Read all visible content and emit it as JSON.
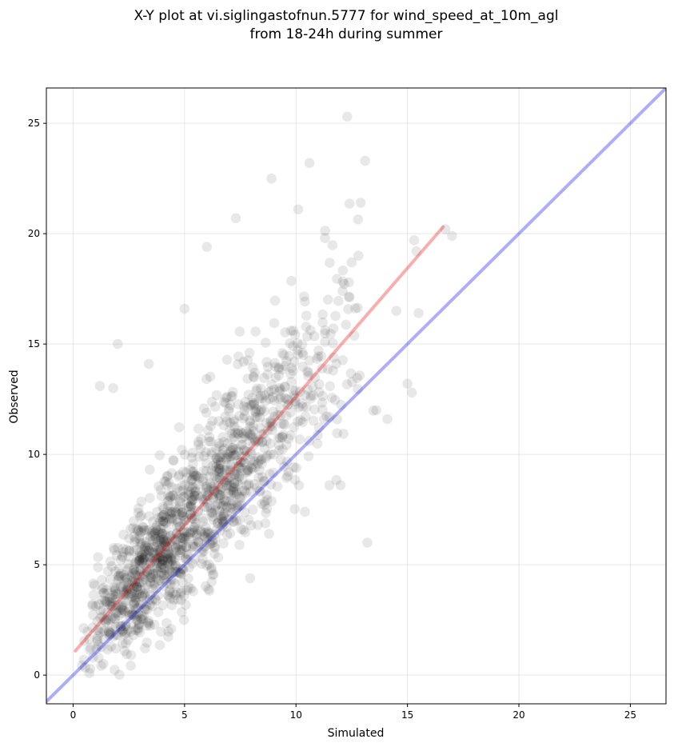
{
  "chart_data": {
    "type": "scatter",
    "title": "X-Y plot at vi.siglingastofnun.5777 for wind_speed_at_10m_agl",
    "subtitle": "from 18-24h during summer",
    "xlabel": "Simulated",
    "ylabel": "Observed",
    "xlim": [
      -1.2,
      26.6
    ],
    "ylim": [
      -1.3,
      26.6
    ],
    "xticks": [
      0,
      5,
      10,
      15,
      20,
      25
    ],
    "yticks": [
      0,
      5,
      10,
      15,
      20,
      25
    ],
    "grid": true,
    "point_color": "#000000",
    "point_alpha": 0.09,
    "identity_line": {
      "x": [
        -1.2,
        26.6
      ],
      "y": [
        -1.2,
        26.6
      ],
      "color": "#0000ee",
      "alpha": 0.32
    },
    "regression_line": {
      "x": [
        0.1,
        16.6
      ],
      "y": [
        1.1,
        20.3
      ],
      "color": "#ee0000",
      "alpha": 0.32
    },
    "outliers": [
      [
        12.3,
        25.3
      ],
      [
        13.1,
        23.3
      ],
      [
        10.6,
        23.2
      ],
      [
        8.9,
        22.5
      ],
      [
        12.9,
        21.4
      ],
      [
        10.1,
        21.1
      ],
      [
        7.3,
        20.7
      ],
      [
        17.0,
        19.9
      ],
      [
        16.7,
        20.2
      ],
      [
        6.0,
        19.4
      ],
      [
        15.3,
        19.7
      ],
      [
        15.4,
        19.2
      ],
      [
        13.2,
        6.0
      ],
      [
        15.5,
        16.4
      ],
      [
        15.2,
        12.8
      ],
      [
        15.0,
        13.2
      ],
      [
        2.0,
        15.0
      ],
      [
        1.2,
        13.1
      ],
      [
        1.8,
        13.0
      ],
      [
        3.4,
        14.1
      ],
      [
        11.5,
        8.6
      ],
      [
        12.0,
        8.6
      ],
      [
        10.4,
        7.4
      ],
      [
        5.0,
        16.6
      ],
      [
        14.1,
        11.6
      ],
      [
        13.6,
        12.0
      ],
      [
        11.3,
        19.8
      ],
      [
        12.5,
        18.7
      ],
      [
        14.5,
        16.5
      ],
      [
        12.8,
        19.0
      ]
    ],
    "cluster": {
      "count": 1350,
      "seed": 57770,
      "x_range": [
        0.2,
        13.5
      ],
      "x_mode": 3.0,
      "slope": 1.16,
      "intercept": 1.0,
      "spread": 1.6,
      "spread_growth": 0.16
    }
  }
}
